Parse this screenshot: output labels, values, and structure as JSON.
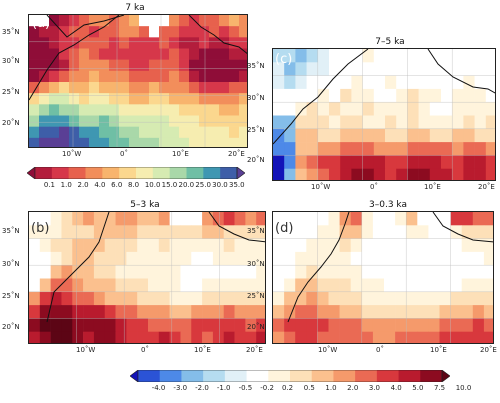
{
  "panels": {
    "a": {
      "label": "(a)",
      "title": "7 ka",
      "lat_labels": [
        "35˚N",
        "30˚N",
        "25˚N",
        "20˚N"
      ],
      "lon_labels": [
        "10˚W",
        "0˚",
        "10˚E",
        "20˚E"
      ]
    },
    "c": {
      "label": "(c)",
      "title": "7–5 ka",
      "lat_labels": [
        "35˚N",
        "30˚N",
        "25˚N",
        "20˚N"
      ],
      "lon_labels": [
        "10˚W",
        "0˚",
        "10˚E",
        "20˚E"
      ]
    },
    "b": {
      "label": "(b)",
      "title": "5–3 ka",
      "lat_labels": [
        "35˚N",
        "30˚N",
        "25˚N",
        "20˚N"
      ],
      "lon_labels": [
        "10˚W",
        "0˚",
        "10˚E",
        "20˚E"
      ]
    },
    "d": {
      "label": "(d)",
      "title": "3–0.3 ka",
      "lat_labels": [
        "35˚N",
        "30˚N",
        "25˚N",
        "20˚N"
      ],
      "lon_labels": [
        "10˚W",
        "0˚",
        "10˚E",
        "20˚E"
      ]
    }
  },
  "colorbar_top": {
    "labels": [
      "0.1",
      "1.0",
      "2.0",
      "4.0",
      "6.0",
      "8.0",
      "10.0",
      "15.0",
      "20.0",
      "25.0",
      "30.0",
      "35.0"
    ],
    "colors": [
      "#8f0d38",
      "#b31d3c",
      "#d6374a",
      "#e7614d",
      "#f28e5b",
      "#f8b46d",
      "#fbd78e",
      "#f6edb0",
      "#d6ebb2",
      "#a9d8a9",
      "#6fbfa5",
      "#3f97b2",
      "#3e5ea8",
      "#5a3f95"
    ]
  },
  "colorbar_bottom": {
    "labels": [
      "-4.0",
      "-3.0",
      "-2.0",
      "-1.0",
      "-0.5",
      "-0.2",
      "0.2",
      "0.5",
      "1.0",
      "2.0",
      "3.0",
      "4.0",
      "5.0",
      "7.5",
      "10.0"
    ],
    "colors": [
      "#1313b8",
      "#2b53d6",
      "#4d89e8",
      "#84bde9",
      "#b5dcf0",
      "#e1f0f7",
      "#ffffff",
      "#fff4dc",
      "#fde0b8",
      "#fbc08e",
      "#f59a6b",
      "#ea6a54",
      "#d8383d",
      "#b91b2e",
      "#8c0b20",
      "#5c0515"
    ]
  }
}
